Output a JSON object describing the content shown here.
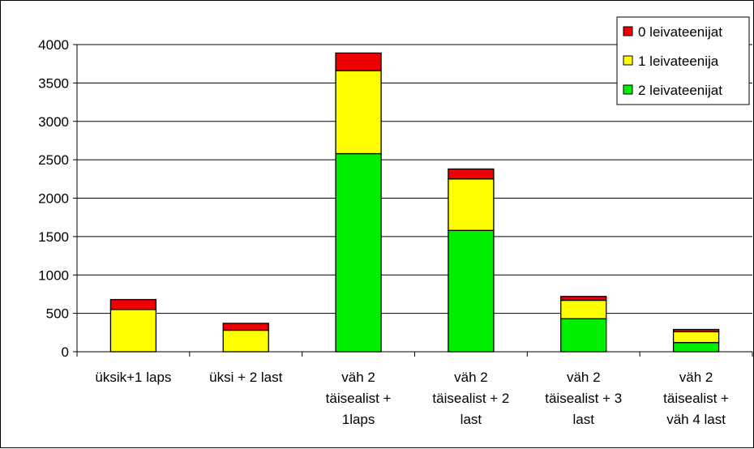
{
  "chart_data": {
    "type": "bar",
    "stacked": true,
    "categories": [
      [
        "üksik+1 laps"
      ],
      [
        "üksi + 2 last"
      ],
      [
        "väh 2",
        "täisealist +",
        "1laps"
      ],
      [
        "väh 2",
        "täisealist + 2",
        "last"
      ],
      [
        "väh 2",
        "täisealist + 3",
        "last"
      ],
      [
        "väh 2",
        "täisealist +",
        "väh 4 last"
      ]
    ],
    "series": [
      {
        "name": "2 leivateenijat",
        "color": "#00ee00",
        "values": [
          0,
          0,
          2580,
          1580,
          430,
          120
        ]
      },
      {
        "name": "1 leivateenija",
        "color": "#ffff00",
        "values": [
          550,
          280,
          1080,
          670,
          240,
          140
        ]
      },
      {
        "name": "0 leivateenijat",
        "color": "#ee0000",
        "values": [
          130,
          90,
          230,
          130,
          50,
          30
        ]
      }
    ],
    "ylim": [
      0,
      4000
    ],
    "yticks": [
      "0",
      "500",
      "1000",
      "1500",
      "2000",
      "2500",
      "3000",
      "3500",
      "4000"
    ],
    "grid": true,
    "legend": "top-right"
  }
}
